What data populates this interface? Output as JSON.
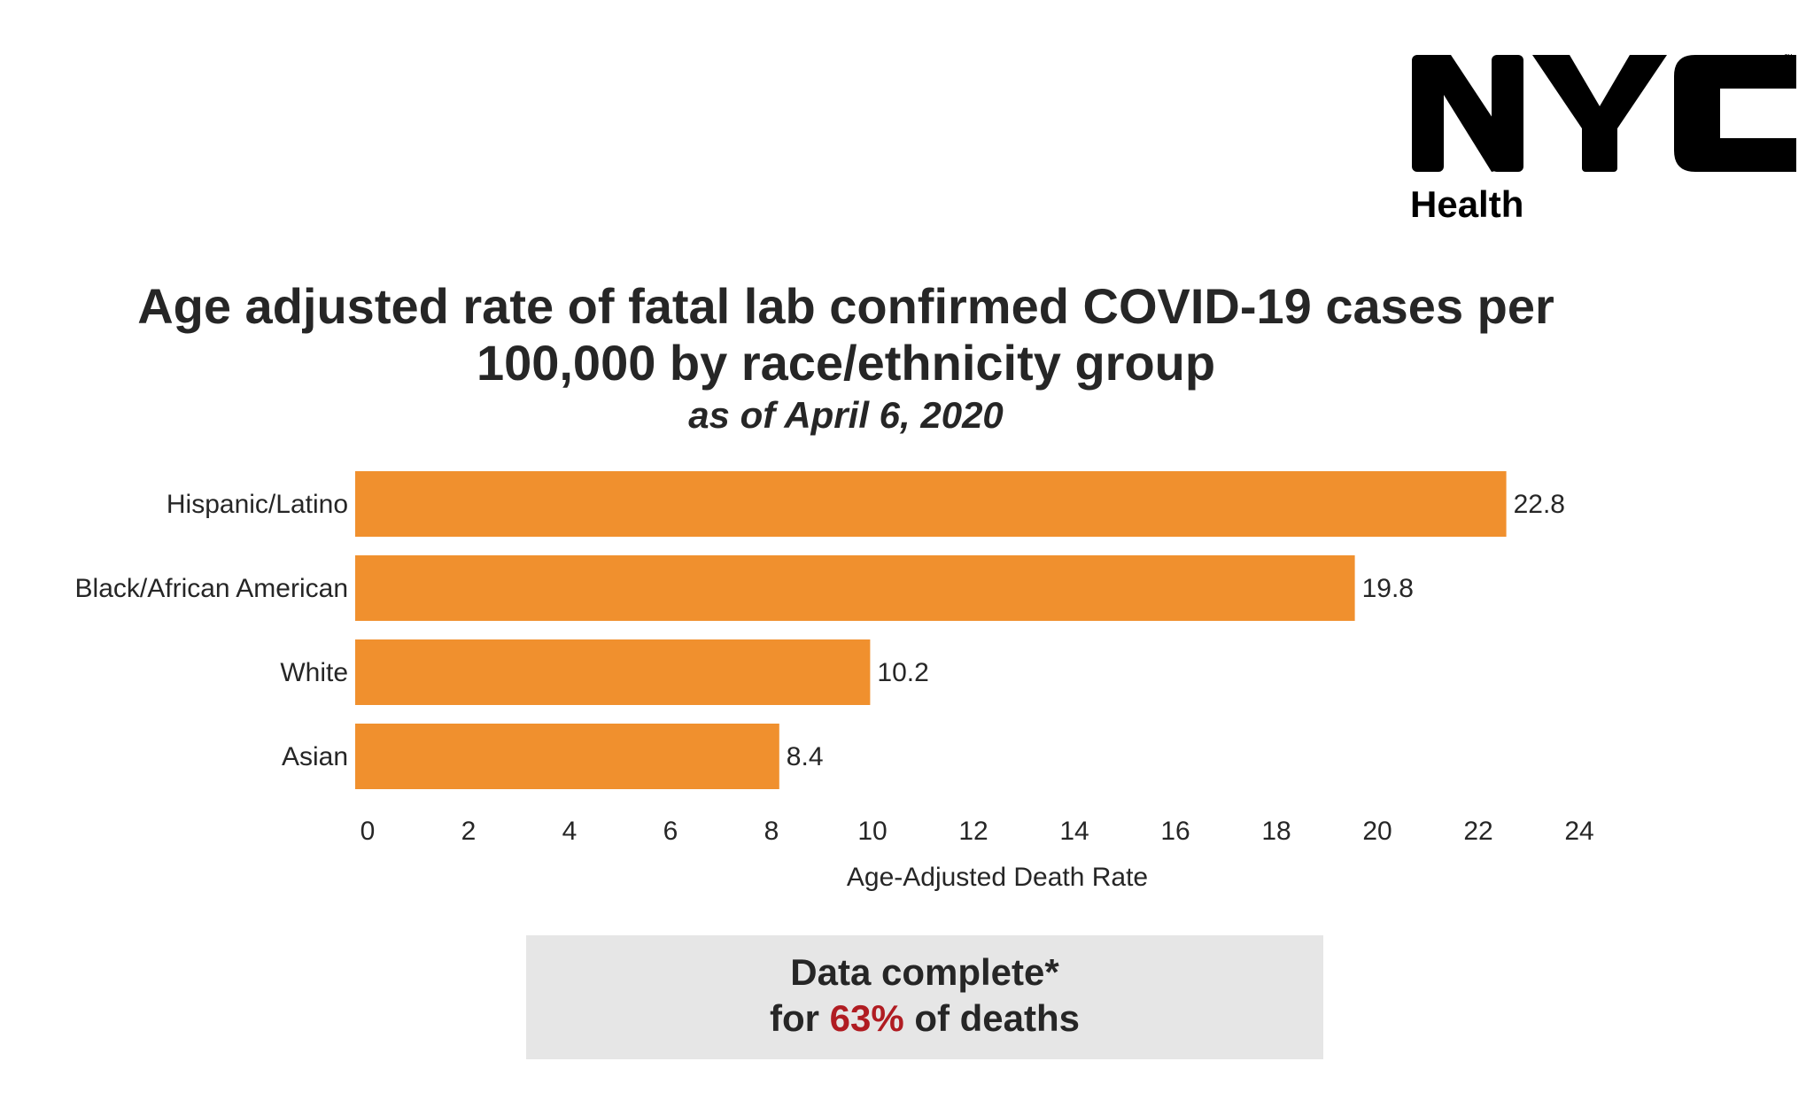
{
  "logo": {
    "wordmark": "NYC",
    "sub": "Health"
  },
  "title": {
    "line1": "Age adjusted rate of fatal lab confirmed COVID-19 cases per",
    "line2": "100,000 by race/ethnicity group",
    "subtitle": "as of April 6, 2020"
  },
  "chart_data": {
    "type": "bar",
    "orientation": "horizontal",
    "categories": [
      "Hispanic/Latino",
      "Black/African American",
      "White",
      "Asian"
    ],
    "values": [
      22.8,
      19.8,
      10.2,
      8.4
    ],
    "data_labels": [
      "22.8",
      "19.8",
      "10.2",
      "8.4"
    ],
    "xlabel": "Age-Adjusted Death Rate",
    "ylabel": "",
    "xlim": [
      0,
      24
    ],
    "xticks": [
      0,
      2,
      4,
      6,
      8,
      10,
      12,
      14,
      16,
      18,
      20,
      22,
      24
    ],
    "grid": false,
    "bar_color": "#f0902e"
  },
  "note": {
    "line1": "Data complete*",
    "line2_prefix": "for ",
    "line2_highlight": "63%",
    "line2_suffix": " of deaths",
    "highlight_color": "#b01c22"
  }
}
